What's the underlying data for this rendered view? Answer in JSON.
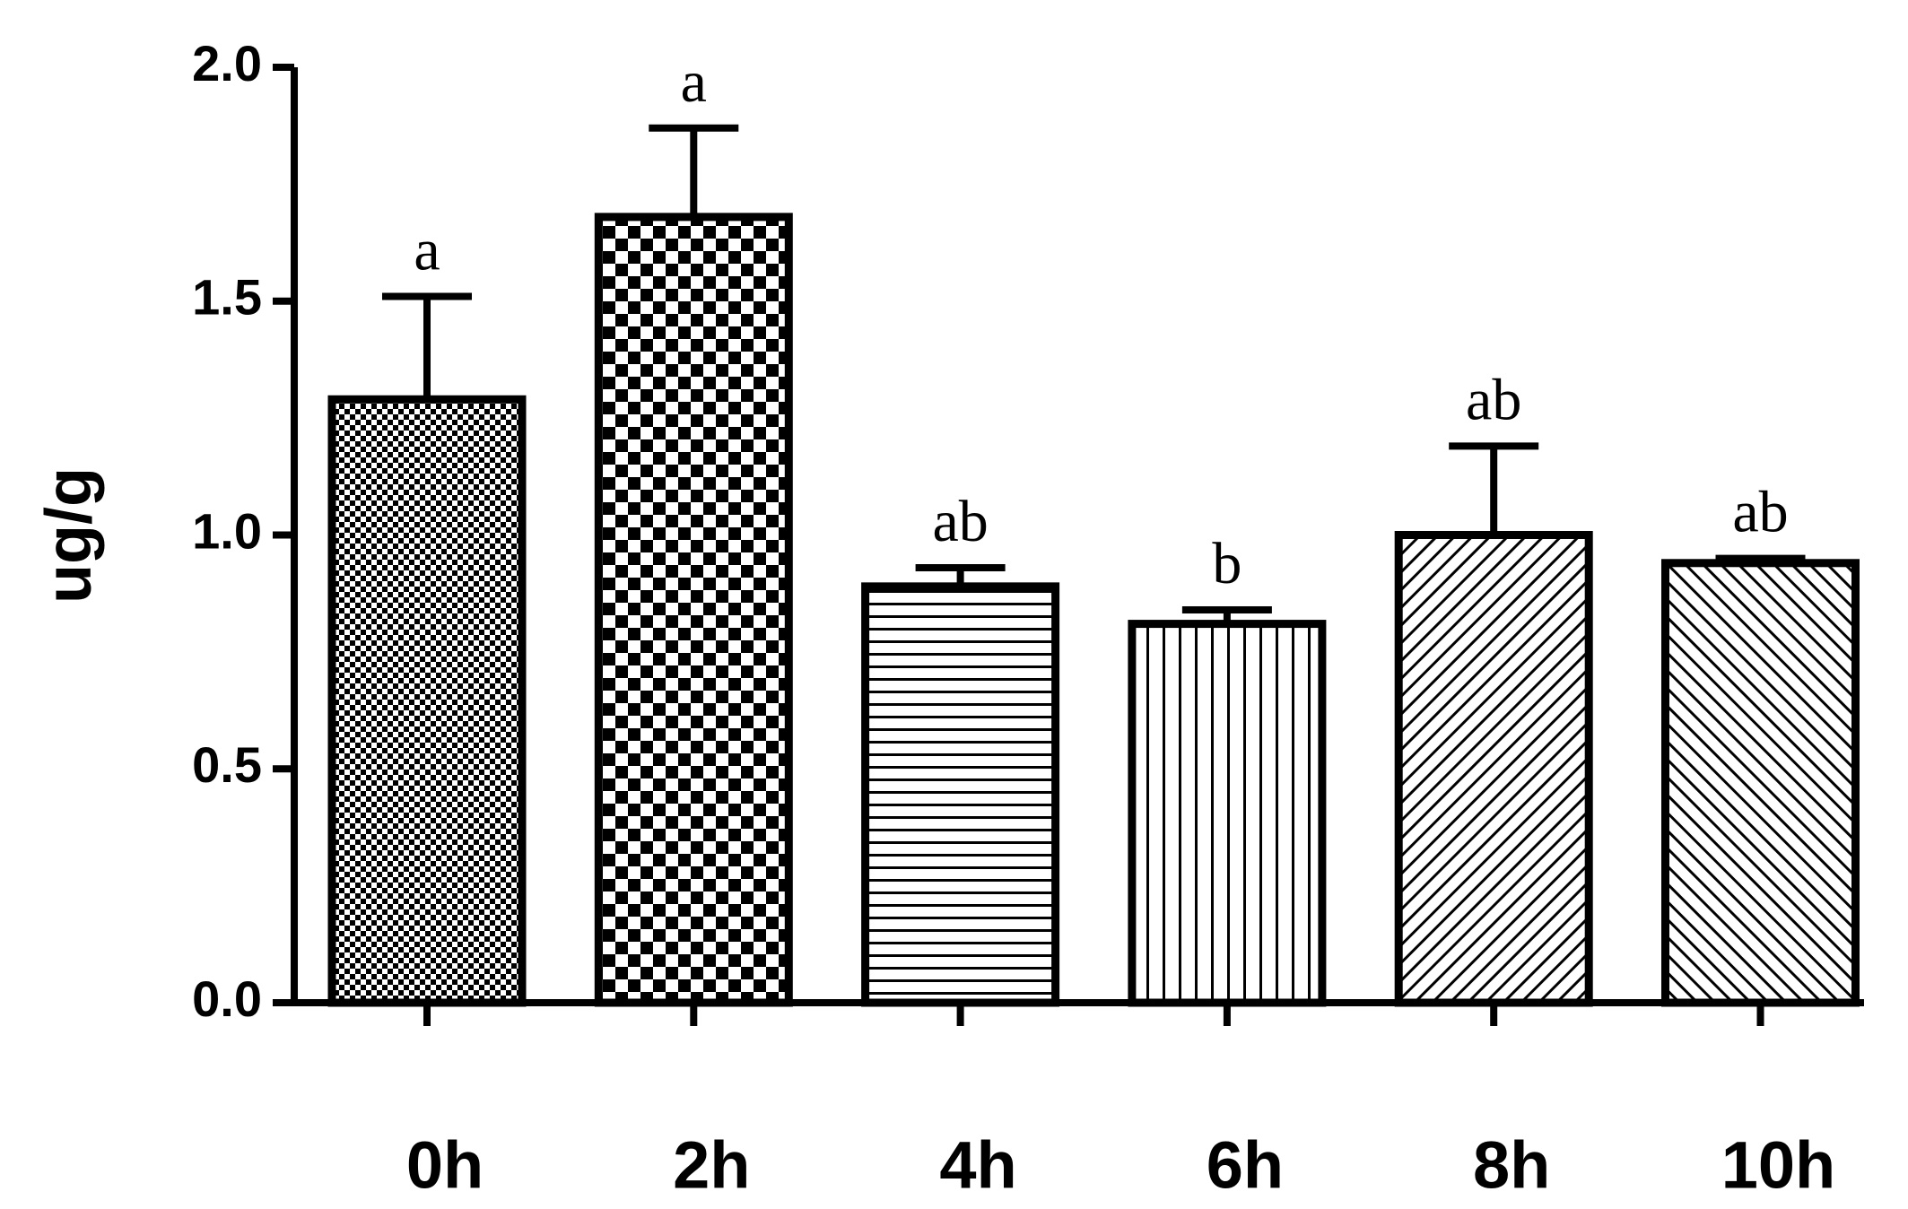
{
  "chart_data": {
    "type": "bar",
    "ylabel": "ug/g",
    "categories": [
      "0h",
      "2h",
      "4h",
      "6h",
      "8h",
      "10h"
    ],
    "values": [
      1.29,
      1.68,
      0.89,
      0.81,
      1.0,
      0.94
    ],
    "errors": [
      0.22,
      0.19,
      0.04,
      0.03,
      0.19,
      0.01
    ],
    "annotations": [
      "a",
      "a",
      "ab",
      "b",
      "ab",
      "ab"
    ],
    "patterns": [
      "fine-checker",
      "checker",
      "horizontal",
      "vertical",
      "diagonal-up",
      "diagonal-down"
    ],
    "color": "#000000",
    "ylim": [
      0,
      2.0
    ],
    "yticks": [
      {
        "value": 0,
        "label": "0.0"
      },
      {
        "value": 0.5,
        "label": "0.5"
      },
      {
        "value": 1,
        "label": "1.0"
      },
      {
        "value": 1.5,
        "label": "1.5"
      },
      {
        "value": 2,
        "label": "2.0"
      }
    ]
  }
}
